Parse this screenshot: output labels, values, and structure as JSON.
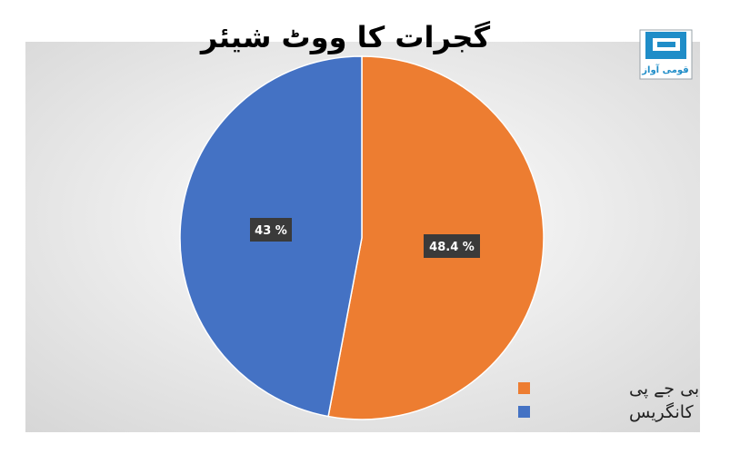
{
  "chart_data": {
    "type": "pie",
    "title": "گجرات کا ووٹ شیئر",
    "slices": [
      {
        "label": "بی جے پی",
        "value": 48.4,
        "display": "48.4 %",
        "color": "#ED7D31"
      },
      {
        "label": "کانگریس",
        "value": 43,
        "display": "43 %",
        "color": "#4472C4"
      }
    ],
    "legend": {
      "position": "bottom-right"
    }
  },
  "logo": {
    "text": "قومی آواز",
    "color": "#1f8dc8"
  },
  "colors": {
    "background": "#e7e7e7",
    "title": "#000000",
    "label_box": "#3a3a3a",
    "label_text": "#ffffff"
  }
}
